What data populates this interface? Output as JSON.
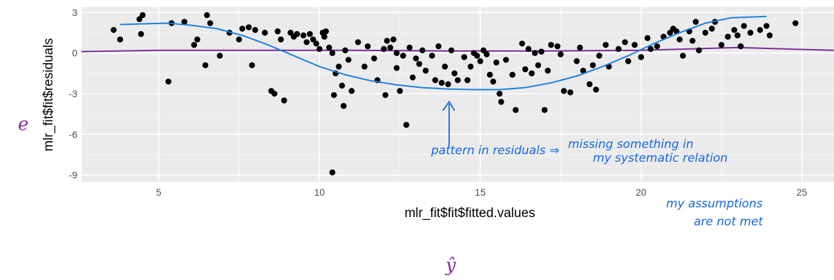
{
  "chart_data": {
    "type": "scatter",
    "xlabel": "mlr_fit$fit$fitted.values",
    "ylabel": "mlr_fit$fit$residuals",
    "xlim": [
      2.6,
      26.0
    ],
    "ylim": [
      -9.5,
      3.4
    ],
    "x_ticks": [
      5,
      10,
      15,
      20,
      25
    ],
    "y_ticks": [
      3,
      0,
      -3,
      -6,
      -9
    ],
    "grid": true,
    "background": "#ebebeb",
    "gridline_color": "#ffffff",
    "point_color": "#000000",
    "points": [
      [
        3.6,
        1.7
      ],
      [
        3.8,
        1.0
      ],
      [
        4.4,
        2.5
      ],
      [
        4.5,
        2.8
      ],
      [
        4.45,
        1.4
      ],
      [
        5.3,
        -2.1
      ],
      [
        5.4,
        2.2
      ],
      [
        5.8,
        2.3
      ],
      [
        6.1,
        0.6
      ],
      [
        6.2,
        1.0
      ],
      [
        6.5,
        2.8
      ],
      [
        6.6,
        2.2
      ],
      [
        6.45,
        -0.9
      ],
      [
        6.9,
        -0.2
      ],
      [
        7.2,
        1.5
      ],
      [
        7.5,
        1.0
      ],
      [
        7.6,
        1.8
      ],
      [
        7.8,
        1.9
      ],
      [
        8.0,
        1.7
      ],
      [
        7.9,
        -0.9
      ],
      [
        8.3,
        1.5
      ],
      [
        8.5,
        -2.8
      ],
      [
        8.6,
        -3.0
      ],
      [
        8.7,
        1.6
      ],
      [
        8.9,
        -3.5
      ],
      [
        8.8,
        1.0
      ],
      [
        9.1,
        1.5
      ],
      [
        9.2,
        1.2
      ],
      [
        9.3,
        1.4
      ],
      [
        9.5,
        1.3
      ],
      [
        9.7,
        1.4
      ],
      [
        9.8,
        1.0
      ],
      [
        9.9,
        0.7
      ],
      [
        10.0,
        0.3
      ],
      [
        10.1,
        1.5
      ],
      [
        10.15,
        1.2
      ],
      [
        10.2,
        1.6
      ],
      [
        10.3,
        0.4
      ],
      [
        10.4,
        0.0
      ],
      [
        10.5,
        -1.5
      ],
      [
        10.45,
        -3.1
      ],
      [
        10.6,
        -1.0
      ],
      [
        10.7,
        -2.4
      ],
      [
        10.75,
        -3.9
      ],
      [
        10.9,
        -0.5
      ],
      [
        11.0,
        -2.8
      ],
      [
        10.4,
        -8.8
      ],
      [
        11.2,
        0.8
      ],
      [
        11.4,
        -1.0
      ],
      [
        11.5,
        0.5
      ],
      [
        11.7,
        -0.4
      ],
      [
        11.8,
        -2.0
      ],
      [
        12.0,
        0.3
      ],
      [
        12.05,
        -3.1
      ],
      [
        12.1,
        0.9
      ],
      [
        12.2,
        0.4
      ],
      [
        12.3,
        1.0
      ],
      [
        12.4,
        -1.1
      ],
      [
        12.5,
        -2.8
      ],
      [
        12.6,
        -0.2
      ],
      [
        12.7,
        -5.3
      ],
      [
        12.8,
        0.4
      ],
      [
        12.9,
        -1.8
      ],
      [
        13.0,
        -0.4
      ],
      [
        13.1,
        -0.8
      ],
      [
        13.3,
        -1.3
      ],
      [
        13.5,
        -0.2
      ],
      [
        13.6,
        -2.0
      ],
      [
        13.7,
        0.5
      ],
      [
        13.8,
        -2.2
      ],
      [
        13.9,
        -1.0
      ],
      [
        14.0,
        -2.3
      ],
      [
        14.1,
        0.2
      ],
      [
        14.2,
        -1.5
      ],
      [
        14.3,
        -2.0
      ],
      [
        14.5,
        -0.3
      ],
      [
        14.6,
        -2.0
      ],
      [
        14.7,
        -1.0
      ],
      [
        14.8,
        0.0
      ],
      [
        15.0,
        -0.6
      ],
      [
        15.1,
        0.2
      ],
      [
        15.2,
        -0.1
      ],
      [
        15.3,
        -1.6
      ],
      [
        15.4,
        -2.1
      ],
      [
        15.5,
        -0.7
      ],
      [
        15.6,
        -3.0
      ],
      [
        15.65,
        -3.6
      ],
      [
        15.8,
        -0.5
      ],
      [
        16.0,
        -1.6
      ],
      [
        16.1,
        -4.2
      ],
      [
        16.3,
        0.7
      ],
      [
        16.4,
        -1.2
      ],
      [
        16.5,
        0.3
      ],
      [
        16.6,
        -1.5
      ],
      [
        16.8,
        -0.9
      ],
      [
        16.9,
        0.1
      ],
      [
        17.0,
        -4.2
      ],
      [
        17.1,
        -1.3
      ],
      [
        17.2,
        0.6
      ],
      [
        17.4,
        0.5
      ],
      [
        17.5,
        -0.1
      ],
      [
        17.6,
        -2.8
      ],
      [
        17.8,
        -2.9
      ],
      [
        18.0,
        -0.6
      ],
      [
        18.1,
        0.4
      ],
      [
        18.2,
        -1.3
      ],
      [
        18.4,
        -2.3
      ],
      [
        18.5,
        -0.9
      ],
      [
        18.6,
        -2.7
      ],
      [
        18.7,
        -0.2
      ],
      [
        19.0,
        -1.0
      ],
      [
        19.3,
        0.3
      ],
      [
        19.5,
        0.8
      ],
      [
        19.6,
        -0.6
      ],
      [
        19.8,
        0.6
      ],
      [
        20.0,
        -0.3
      ],
      [
        20.2,
        1.1
      ],
      [
        20.3,
        0.3
      ],
      [
        20.5,
        0.5
      ],
      [
        20.7,
        1.2
      ],
      [
        20.9,
        1.5
      ],
      [
        21.0,
        1.8
      ],
      [
        21.1,
        1.6
      ],
      [
        21.2,
        1.0
      ],
      [
        21.3,
        -0.2
      ],
      [
        21.5,
        1.6
      ],
      [
        21.6,
        0.9
      ],
      [
        21.7,
        2.3
      ],
      [
        22.0,
        1.5
      ],
      [
        22.2,
        1.8
      ],
      [
        22.3,
        2.3
      ],
      [
        22.7,
        1.2
      ],
      [
        22.9,
        1.7
      ],
      [
        23.0,
        1.3
      ],
      [
        23.1,
        0.5
      ],
      [
        23.2,
        2.0
      ],
      [
        23.4,
        1.5
      ],
      [
        23.7,
        1.7
      ],
      [
        23.9,
        2.0
      ],
      [
        24.0,
        1.3
      ],
      [
        24.8,
        2.2
      ],
      [
        9.6,
        0.8
      ],
      [
        10.8,
        0.2
      ],
      [
        12.4,
        0.0
      ],
      [
        13.2,
        0.2
      ],
      [
        14.9,
        -0.2
      ],
      [
        16.7,
        0.0
      ],
      [
        18.9,
        0.6
      ],
      [
        21.8,
        0.2
      ],
      [
        22.5,
        0.6
      ]
    ],
    "smooth_line": {
      "color": "#1a7fe0",
      "points": [
        [
          3.8,
          2.1
        ],
        [
          4.5,
          2.15
        ],
        [
          5.3,
          2.2
        ],
        [
          6.0,
          2.05
        ],
        [
          6.8,
          1.8
        ],
        [
          7.6,
          1.3
        ],
        [
          8.4,
          0.6
        ],
        [
          9.2,
          -0.2
        ],
        [
          10.0,
          -1.0
        ],
        [
          10.8,
          -1.6
        ],
        [
          11.6,
          -2.05
        ],
        [
          12.4,
          -2.35
        ],
        [
          13.2,
          -2.55
        ],
        [
          14.0,
          -2.65
        ],
        [
          14.8,
          -2.7
        ],
        [
          15.6,
          -2.7
        ],
        [
          16.4,
          -2.55
        ],
        [
          17.2,
          -2.2
        ],
        [
          18.0,
          -1.7
        ],
        [
          18.8,
          -1.0
        ],
        [
          19.6,
          -0.2
        ],
        [
          20.4,
          0.7
        ],
        [
          21.2,
          1.5
        ],
        [
          22.0,
          2.2
        ],
        [
          22.8,
          2.6
        ],
        [
          23.9,
          2.7
        ]
      ]
    },
    "purple_line": {
      "color": "#7b2a96",
      "points": [
        [
          2.6,
          0.1
        ],
        [
          5,
          0.2
        ],
        [
          8,
          0.2
        ],
        [
          11,
          0.2
        ],
        [
          14,
          0.15
        ],
        [
          17,
          0.15
        ],
        [
          20,
          0.2
        ],
        [
          23,
          0.4
        ],
        [
          26,
          0.2
        ]
      ]
    }
  },
  "annotations": {
    "e_label": "e",
    "pattern": "pattern in residuals ⇒",
    "missing_line1": "missing something in",
    "missing_line2": "my systematic relation",
    "assumptions_line1": "my assumptions",
    "assumptions_line2": "are not met",
    "yhat": "ŷ",
    "ink_blue": "#1565e8",
    "ink_purple": "#8a2c9f"
  }
}
